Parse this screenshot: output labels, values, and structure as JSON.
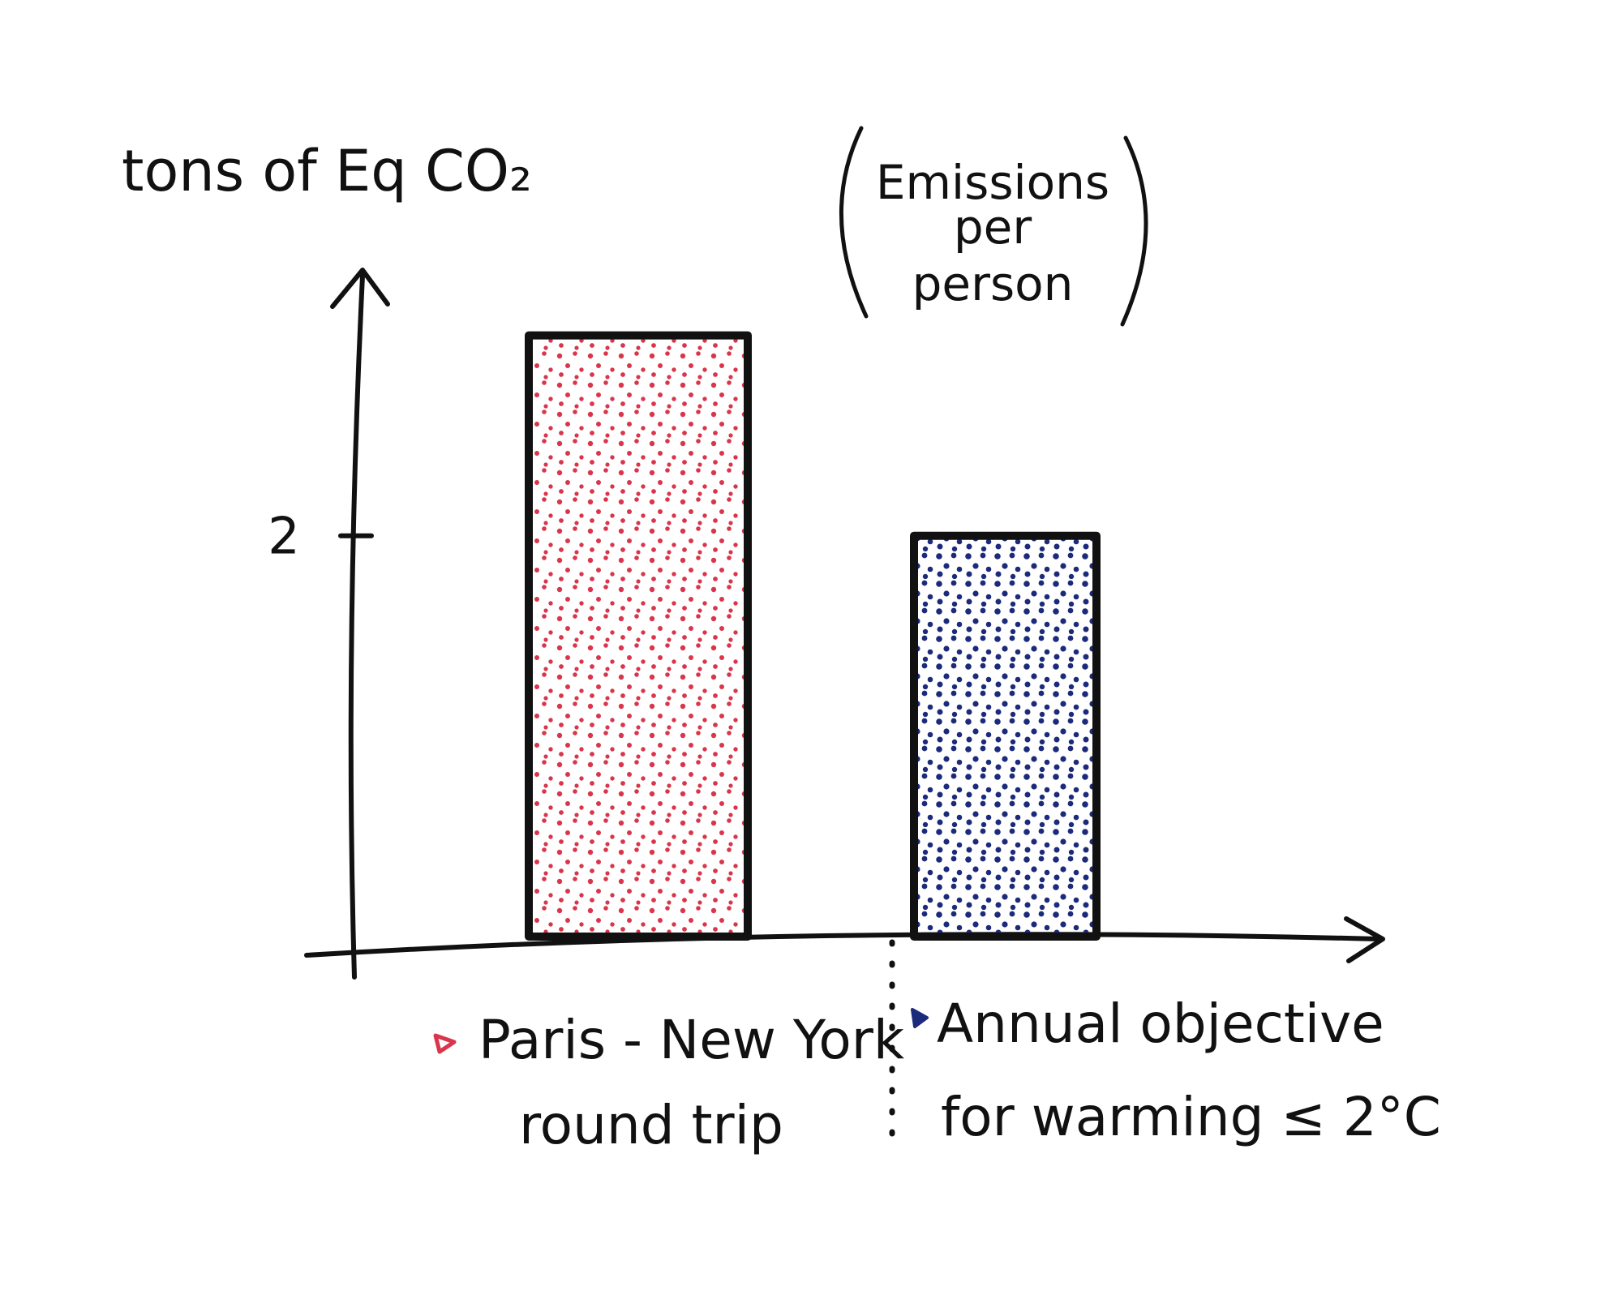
{
  "chart_data": {
    "type": "bar",
    "ylabel": "tons of Eq CO₂",
    "note_lines": [
      "Emissions",
      "per",
      "person"
    ],
    "categories": [
      {
        "lines": [
          "Paris - New York",
          "round trip"
        ]
      },
      {
        "lines": [
          "Annual objective",
          "for warming ≤ 2°C"
        ]
      }
    ],
    "values": [
      3.0,
      2.0
    ],
    "yticks": [
      2
    ],
    "ylim": [
      0,
      3.5
    ],
    "grid": false,
    "legend": "none",
    "colors": [
      "#d9354b",
      "#1b2a7a"
    ]
  }
}
